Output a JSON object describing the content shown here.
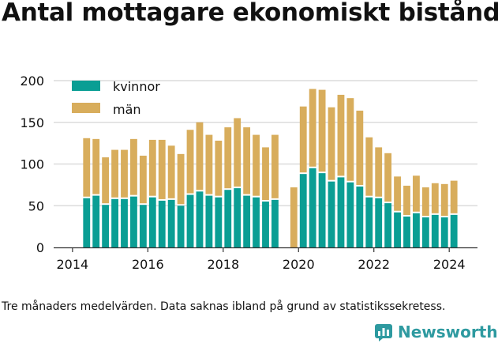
{
  "title": "Antal mottagare ekonomiskt bistånd",
  "footnote": "Tre månaders medelvärden. Data saknas ibland på grund av statistikssekretess.",
  "brand": {
    "name": "Newsworthy"
  },
  "colors": {
    "kvinnor": "#0a9e94",
    "man": "#d8ad5c",
    "grid": "#dcdcdc",
    "axis": "#333333",
    "brand": "#2e9aa0"
  },
  "chart_data": {
    "type": "bar",
    "stacked": true,
    "x_ticks": [
      "2014",
      "2016",
      "2018",
      "2020",
      "2022",
      "2024"
    ],
    "x_tick_positions": [
      2014,
      2016,
      2018,
      2020,
      2022,
      2024
    ],
    "xlim": [
      2013.5,
      2024.75
    ],
    "y_ticks": [
      "0",
      "50",
      "100",
      "150",
      "200"
    ],
    "ylim": [
      0,
      200
    ],
    "grid": true,
    "legend": "top-left",
    "x": [
      2014.375,
      2014.625,
      2014.875,
      2015.125,
      2015.375,
      2015.625,
      2015.875,
      2016.125,
      2016.375,
      2016.625,
      2016.875,
      2017.125,
      2017.375,
      2017.625,
      2017.875,
      2018.125,
      2018.375,
      2018.625,
      2018.875,
      2019.125,
      2019.375,
      2019.625,
      2019.875,
      2020.125,
      2020.375,
      2020.625,
      2020.875,
      2021.125,
      2021.375,
      2021.625,
      2021.875,
      2022.125,
      2022.375,
      2022.625,
      2022.875,
      2023.125,
      2023.375,
      2023.625,
      2023.875,
      2024.125
    ],
    "series": [
      {
        "name": "kvinnor",
        "color": "#0a9e94",
        "values": [
          59,
          62,
          51,
          58,
          58,
          61,
          51,
          60,
          56,
          57,
          50,
          63,
          67,
          62,
          60,
          69,
          71,
          62,
          60,
          55,
          57,
          null,
          0,
          88,
          95,
          89,
          79,
          84,
          78,
          73,
          60,
          59,
          53,
          42,
          37,
          41,
          36,
          39,
          36,
          39
        ]
      },
      {
        "name": "män",
        "color": "#d8ad5c",
        "values": [
          72,
          68,
          57,
          59,
          59,
          69,
          59,
          69,
          73,
          65,
          62,
          78,
          83,
          73,
          68,
          75,
          84,
          82,
          75,
          65,
          78,
          null,
          72,
          81,
          95,
          100,
          89,
          99,
          101,
          91,
          72,
          61,
          60,
          43,
          37,
          45,
          36,
          38,
          40,
          41
        ]
      }
    ]
  }
}
